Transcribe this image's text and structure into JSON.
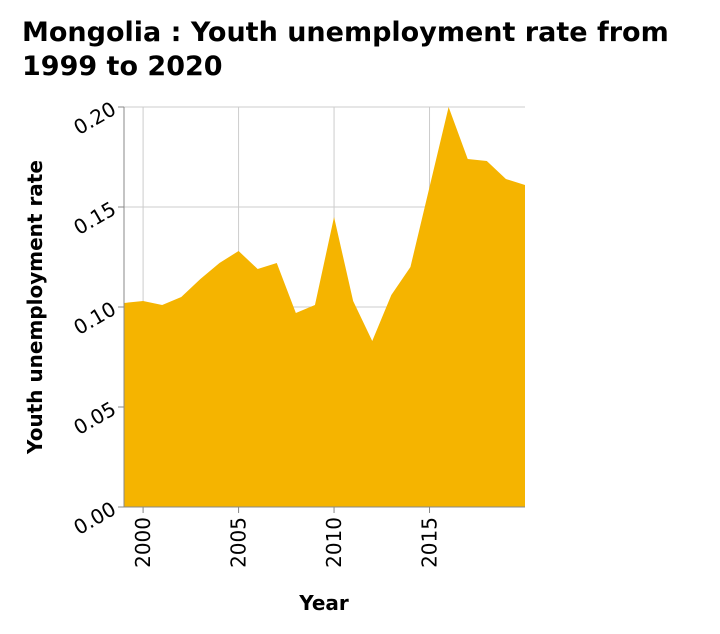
{
  "chart_data": {
    "type": "area",
    "title": "Mongolia : Youth unemployment rate from 1999 to 2020",
    "xlabel": "Year",
    "ylabel": "Youth unemployment rate",
    "xlim": [
      1999,
      2020
    ],
    "ylim": [
      0,
      0.2
    ],
    "x_ticks": [
      2000,
      2005,
      2010,
      2015
    ],
    "y_ticks": [
      "0.00",
      "0.05",
      "0.10",
      "0.15",
      "0.20"
    ],
    "grid": true,
    "fill_color": "#f5b400",
    "x": [
      1999,
      2000,
      2001,
      2002,
      2003,
      2004,
      2005,
      2006,
      2007,
      2008,
      2009,
      2010,
      2011,
      2012,
      2013,
      2014,
      2015,
      2016,
      2017,
      2018,
      2019,
      2020
    ],
    "values": [
      0.102,
      0.103,
      0.101,
      0.105,
      0.114,
      0.122,
      0.128,
      0.119,
      0.122,
      0.097,
      0.101,
      0.145,
      0.103,
      0.083,
      0.106,
      0.12,
      0.16,
      0.2,
      0.174,
      0.173,
      0.164,
      0.161
    ]
  }
}
